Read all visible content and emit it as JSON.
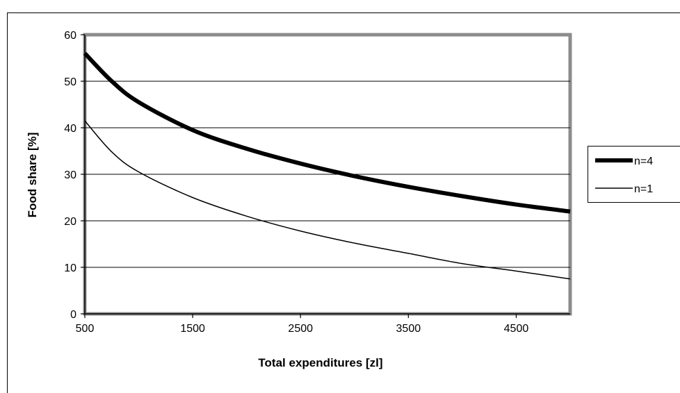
{
  "chart_data": {
    "type": "line",
    "title": "",
    "xlabel": "Total expenditures  [zl]",
    "ylabel": "Food share [%]",
    "xlim": [
      500,
      5000
    ],
    "ylim": [
      0,
      60
    ],
    "x_ticks": [
      "500",
      "1500",
      "2500",
      "3500",
      "4500"
    ],
    "y_ticks": [
      "0",
      "10",
      "20",
      "30",
      "40",
      "50",
      "60"
    ],
    "grid": "horizontal",
    "legend_position": "right",
    "series": [
      {
        "name": "n=4",
        "style": "thick",
        "color": "#000000",
        "points": [
          [
            500,
            56
          ],
          [
            750,
            50
          ],
          [
            1000,
            45.5
          ],
          [
            1500,
            39.5
          ],
          [
            2000,
            35.5
          ],
          [
            2500,
            32.3
          ],
          [
            3000,
            29.6
          ],
          [
            3500,
            27.3
          ],
          [
            4000,
            25.3
          ],
          [
            4500,
            23.5
          ],
          [
            5000,
            22
          ]
        ]
      },
      {
        "name": "n=1",
        "style": "thin",
        "color": "#000000",
        "points": [
          [
            500,
            41.5
          ],
          [
            750,
            34.8
          ],
          [
            1000,
            30.5
          ],
          [
            1500,
            25
          ],
          [
            2000,
            21
          ],
          [
            2500,
            17.8
          ],
          [
            3000,
            15.2
          ],
          [
            3500,
            13
          ],
          [
            4000,
            10.8
          ],
          [
            4500,
            9.2
          ],
          [
            5000,
            7.5
          ]
        ]
      }
    ]
  },
  "colors": {
    "plot_border": "#8c8c8c",
    "gridline": "#000000",
    "axis": "#000000"
  }
}
